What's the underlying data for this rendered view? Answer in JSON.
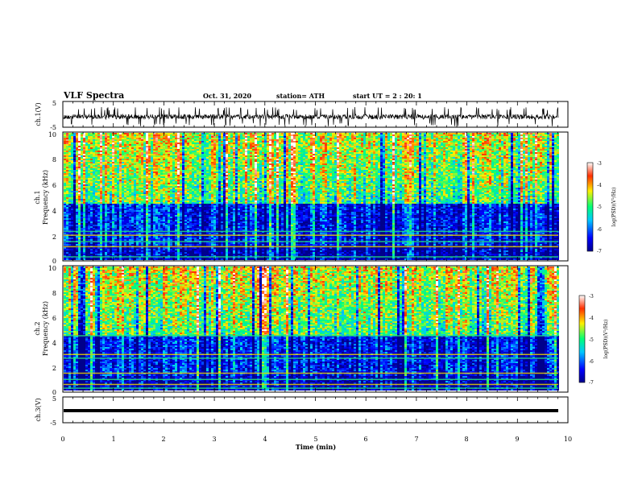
{
  "header": {
    "title": "VLF Spectra",
    "date": "Oct. 31, 2020",
    "station": "station= ATH",
    "start_ut": "start UT = 2 : 20: 1"
  },
  "x_axis": {
    "label": "Time (min)",
    "range": [
      0,
      10
    ],
    "ticks": [
      "0",
      "1",
      "2",
      "3",
      "4",
      "5",
      "6",
      "7",
      "8",
      "9",
      "10"
    ]
  },
  "panels": {
    "ch1_wave": {
      "ylabel": "ch.1(V)",
      "ylim": [
        -5,
        5
      ],
      "ticks": [
        "5",
        "-5"
      ]
    },
    "ch1_spec": {
      "ylabel_top": "ch.1",
      "ylabel": "Frequency (kHz)",
      "ylim": [
        0,
        10
      ],
      "ticks": [
        "10",
        "8",
        "6",
        "4",
        "2",
        "0"
      ]
    },
    "ch2_spec": {
      "ylabel_top": "ch.2",
      "ylabel": "Frequency (kHz)",
      "ylim": [
        0,
        10
      ],
      "ticks": [
        "10",
        "8",
        "6",
        "4",
        "2",
        "0"
      ]
    },
    "ch3_wave": {
      "ylabel": "ch.3(V)",
      "ylim": [
        -5,
        5
      ],
      "ticks": [
        "5",
        "-5"
      ]
    }
  },
  "colorbar": {
    "label": "log(PSD)(V²/Hz)",
    "range": [
      -7,
      -3
    ],
    "ticks": [
      "-3",
      "-4",
      "-5",
      "-6",
      "-7"
    ],
    "colors": [
      "#00008c",
      "#0000ff",
      "#00c8ff",
      "#00ff78",
      "#fff000",
      "#ff3000",
      "#ffffff"
    ]
  },
  "chart_data": [
    {
      "type": "line",
      "title": "",
      "xlabel": "Time (min)",
      "ylabel": "ch.1(V)",
      "xlim": [
        0,
        9.8
      ],
      "ylim": [
        -5,
        5
      ],
      "series": [
        {
          "values_summary": "noisy waveform around -1 V, spikes to about +4 V and -5 V"
        }
      ]
    },
    {
      "type": "heatmap",
      "xlabel": "Time (min)",
      "ylabel": "Frequency (kHz)",
      "xlim": [
        0,
        9.8
      ],
      "ylim": [
        0,
        10
      ],
      "zlim": [
        -7,
        -3
      ],
      "bands_kHz": [
        0.3,
        1.1,
        1.5,
        2.0,
        2.3
      ]
    },
    {
      "type": "heatmap",
      "xlabel": "Time (min)",
      "ylabel": "Frequency (kHz)",
      "xlim": [
        0,
        9.8
      ],
      "ylim": [
        0,
        10
      ],
      "zlim": [
        -7,
        -3
      ],
      "bands_kHz": [
        0.3,
        0.6,
        1.0,
        1.5,
        2.7,
        3.0,
        4.5
      ]
    },
    {
      "type": "line",
      "xlabel": "Time (min)",
      "ylabel": "ch.3(V)",
      "xlim": [
        0,
        9.8
      ],
      "ylim": [
        -5,
        5
      ],
      "series": [
        {
          "values_summary": "flat thick line near -1 V"
        }
      ]
    }
  ]
}
